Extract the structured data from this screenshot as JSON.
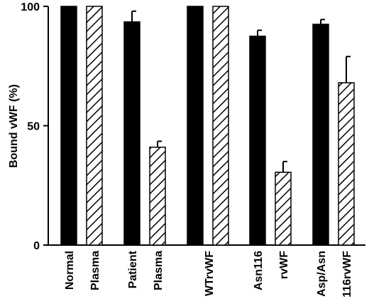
{
  "chart_data": {
    "type": "bar",
    "ylabel": "Bound vWF (%)",
    "ylim": [
      0,
      100
    ],
    "yticks": [
      0,
      50,
      100
    ],
    "groups": [
      {
        "labels": [
          "Normal",
          "Plasma"
        ]
      },
      {
        "labels": [
          "Patient",
          "Plasma"
        ]
      },
      {
        "labels": [
          "WTrvWF"
        ]
      },
      {
        "labels": [
          "Asn116",
          "rvWF"
        ]
      },
      {
        "labels": [
          "Asp/Asn",
          "116rvWF"
        ]
      }
    ],
    "series": [
      {
        "fill": "solid",
        "color": "#000000",
        "values": [
          100,
          93.5,
          100,
          87.5,
          92.5
        ],
        "errors": [
          0,
          4.5,
          0,
          2.5,
          2.0
        ]
      },
      {
        "fill": "hatched",
        "color": "#000000",
        "values": [
          100,
          41,
          100,
          30.5,
          68
        ],
        "errors": [
          0,
          2.5,
          0,
          4.5,
          11.0
        ]
      }
    ],
    "grid": false,
    "legend": "none"
  }
}
